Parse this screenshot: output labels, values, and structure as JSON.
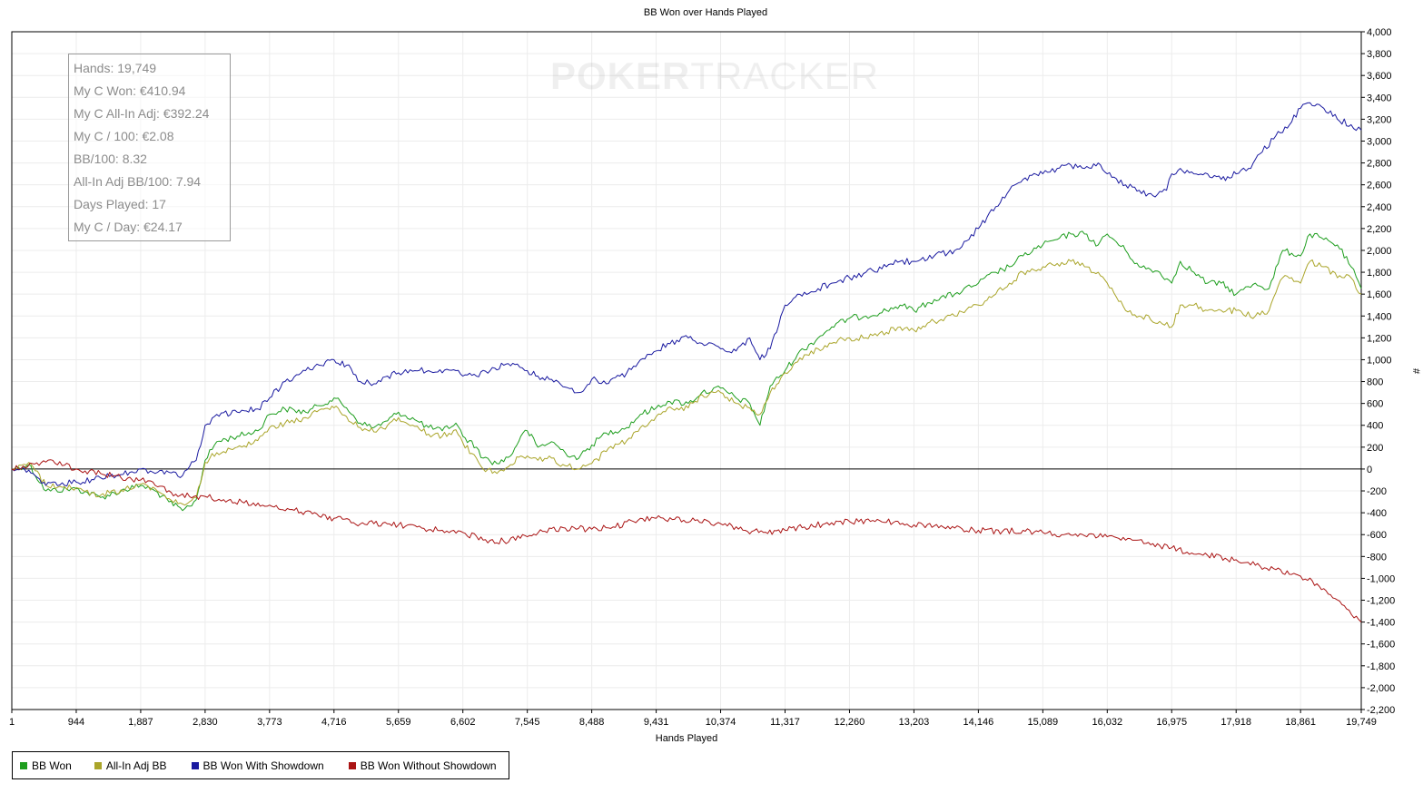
{
  "chart_data": {
    "type": "line",
    "title": "BB Won over Hands Played",
    "xlabel": "Hands Played",
    "ylabel": "#",
    "xlim": [
      1,
      19749
    ],
    "ylim": [
      -2200,
      4000
    ],
    "x_ticks": [
      1,
      944,
      1887,
      2830,
      3773,
      4716,
      5659,
      6602,
      7545,
      8488,
      9431,
      10374,
      11317,
      12260,
      13203,
      14146,
      15089,
      16032,
      16975,
      17918,
      18861,
      19749
    ],
    "x_tick_labels": [
      "1",
      "944",
      "1,887",
      "2,830",
      "3,773",
      "4,716",
      "5,659",
      "6,602",
      "7,545",
      "8,488",
      "9,431",
      "10,374",
      "11,317",
      "12,260",
      "13,203",
      "14,146",
      "15,089",
      "16,032",
      "16,975",
      "17,918",
      "18,861",
      "19,749"
    ],
    "y_ticks": [
      4000,
      3800,
      3600,
      3400,
      3200,
      3000,
      2800,
      2600,
      2400,
      2200,
      2000,
      1800,
      1600,
      1400,
      1200,
      1000,
      800,
      600,
      400,
      200,
      0,
      -200,
      -400,
      -600,
      -800,
      -1000,
      -1200,
      -1400,
      -1600,
      -1800,
      -2000,
      -2200
    ],
    "y_tick_labels": [
      "4,000",
      "3,800",
      "3,600",
      "3,400",
      "3,200",
      "3,000",
      "2,800",
      "2,600",
      "2,400",
      "2,200",
      "2,000",
      "1,800",
      "1,600",
      "1,400",
      "1,200",
      "1,000",
      "800",
      "600",
      "400",
      "200",
      "0",
      "-200",
      "-400",
      "-600",
      "-800",
      "-1,000",
      "-1,200",
      "-1,400",
      "-1,600",
      "-1,800",
      "-2,000",
      "-2,200"
    ],
    "grid": true,
    "legend_position": "bottom-left",
    "series": [
      {
        "name": "BB Won",
        "color": "#1e9e1e",
        "x": [
          1,
          250,
          500,
          944,
          1300,
          1600,
          1887,
          2100,
          2300,
          2500,
          2600,
          2700,
          2830,
          3000,
          3300,
          3600,
          3773,
          4000,
          4300,
          4500,
          4716,
          4900,
          5100,
          5300,
          5500,
          5659,
          5900,
          6100,
          6300,
          6500,
          6602,
          6800,
          6900,
          7100,
          7300,
          7450,
          7545,
          7700,
          7900,
          8100,
          8300,
          8488,
          8700,
          9000,
          9200,
          9431,
          9600,
          9900,
          10100,
          10374,
          10600,
          10800,
          10950,
          11100,
          11317,
          11500,
          11800,
          12000,
          12260,
          12500,
          12800,
          13000,
          13203,
          13500,
          13800,
          14146,
          14400,
          14600,
          14800,
          15089,
          15300,
          15500,
          15700,
          15900,
          16032,
          16300,
          16500,
          16800,
          16975,
          17100,
          17300,
          17500,
          17700,
          17918,
          18200,
          18400,
          18600,
          18861,
          19000,
          19200,
          19400,
          19600,
          19749
        ],
        "y": [
          0,
          40,
          -200,
          -180,
          -260,
          -200,
          -150,
          -200,
          -300,
          -380,
          -340,
          -280,
          80,
          250,
          300,
          350,
          500,
          550,
          520,
          580,
          650,
          560,
          420,
          380,
          440,
          520,
          450,
          380,
          350,
          420,
          300,
          200,
          100,
          50,
          120,
          300,
          350,
          200,
          250,
          150,
          100,
          220,
          330,
          380,
          500,
          560,
          620,
          600,
          700,
          740,
          650,
          600,
          400,
          760,
          900,
          1050,
          1200,
          1300,
          1380,
          1400,
          1450,
          1500,
          1450,
          1550,
          1600,
          1700,
          1800,
          1850,
          1950,
          2050,
          2100,
          2150,
          2150,
          2050,
          2150,
          2000,
          1850,
          1800,
          1700,
          1900,
          1800,
          1700,
          1700,
          1600,
          1700,
          1650,
          2000,
          1950,
          2150,
          2100,
          2050,
          1850,
          1650
        ]
      },
      {
        "name": "All-In Adj BB",
        "color": "#aaa52a",
        "x": [
          1,
          250,
          500,
          944,
          1300,
          1600,
          1887,
          2100,
          2300,
          2500,
          2600,
          2700,
          2830,
          3000,
          3300,
          3600,
          3773,
          4000,
          4300,
          4500,
          4716,
          4900,
          5100,
          5300,
          5500,
          5659,
          5900,
          6100,
          6300,
          6500,
          6602,
          6800,
          6900,
          7100,
          7300,
          7450,
          7545,
          7700,
          7900,
          8100,
          8300,
          8488,
          8700,
          9000,
          9200,
          9431,
          9600,
          9900,
          10100,
          10374,
          10600,
          10800,
          10950,
          11100,
          11317,
          11500,
          11800,
          12000,
          12260,
          12500,
          12800,
          13000,
          13203,
          13500,
          13800,
          14146,
          14400,
          14600,
          14800,
          15089,
          15300,
          15500,
          15700,
          15900,
          16032,
          16300,
          16500,
          16800,
          16975,
          17100,
          17300,
          17500,
          17700,
          17918,
          18200,
          18400,
          18600,
          18861,
          19000,
          19200,
          19400,
          19600,
          19749
        ],
        "y": [
          0,
          60,
          -150,
          -170,
          -240,
          -190,
          -140,
          -180,
          -270,
          -320,
          -300,
          -260,
          60,
          150,
          200,
          260,
          380,
          420,
          470,
          540,
          560,
          480,
          380,
          340,
          400,
          470,
          390,
          320,
          300,
          360,
          240,
          100,
          0,
          -40,
          40,
          120,
          120,
          80,
          100,
          30,
          0,
          50,
          160,
          260,
          380,
          480,
          560,
          560,
          680,
          700,
          600,
          560,
          500,
          700,
          880,
          980,
          1100,
          1150,
          1200,
          1200,
          1250,
          1300,
          1270,
          1350,
          1400,
          1500,
          1600,
          1700,
          1800,
          1850,
          1880,
          1900,
          1850,
          1800,
          1700,
          1450,
          1400,
          1350,
          1300,
          1500,
          1500,
          1450,
          1450,
          1450,
          1400,
          1450,
          1750,
          1700,
          1900,
          1850,
          1750,
          1750,
          1600
        ]
      },
      {
        "name": "BB Won With Showdown",
        "color": "#1a1aa0",
        "x": [
          1,
          250,
          500,
          944,
          1300,
          1600,
          1887,
          2100,
          2300,
          2500,
          2600,
          2700,
          2830,
          3000,
          3300,
          3600,
          3773,
          4000,
          4300,
          4500,
          4716,
          4900,
          5100,
          5300,
          5500,
          5659,
          5900,
          6100,
          6300,
          6500,
          6602,
          6800,
          7000,
          7200,
          7400,
          7545,
          7700,
          7900,
          8100,
          8300,
          8488,
          8700,
          9000,
          9200,
          9431,
          9600,
          9900,
          10100,
          10374,
          10600,
          10800,
          10950,
          11100,
          11317,
          11500,
          11800,
          12000,
          12260,
          12500,
          12800,
          13000,
          13203,
          13500,
          13800,
          14146,
          14400,
          14600,
          14800,
          15089,
          15300,
          15500,
          15700,
          15900,
          16032,
          16300,
          16500,
          16700,
          16900,
          16975,
          17100,
          17300,
          17500,
          17700,
          17918,
          18100,
          18300,
          18500,
          18700,
          18861,
          19000,
          19200,
          19400,
          19600,
          19749
        ],
        "y": [
          0,
          -10,
          -150,
          -120,
          -80,
          -50,
          0,
          -40,
          -30,
          -60,
          20,
          80,
          400,
          500,
          520,
          550,
          650,
          800,
          900,
          950,
          1000,
          950,
          800,
          780,
          850,
          880,
          900,
          900,
          880,
          900,
          850,
          850,
          900,
          950,
          960,
          900,
          850,
          820,
          750,
          700,
          820,
          780,
          880,
          1000,
          1080,
          1150,
          1200,
          1150,
          1100,
          1080,
          1200,
          1000,
          1100,
          1500,
          1600,
          1650,
          1700,
          1750,
          1800,
          1850,
          1900,
          1900,
          1950,
          2000,
          2200,
          2400,
          2550,
          2650,
          2700,
          2750,
          2780,
          2750,
          2800,
          2700,
          2600,
          2550,
          2500,
          2550,
          2700,
          2750,
          2700,
          2700,
          2650,
          2700,
          2750,
          2900,
          3050,
          3150,
          3300,
          3350,
          3300,
          3200,
          3150,
          3100
        ]
      },
      {
        "name": "BB Won Without Showdown",
        "color": "#aa1414",
        "x": [
          1,
          300,
          600,
          944,
          1300,
          1600,
          1887,
          2100,
          2400,
          2600,
          2830,
          3100,
          3400,
          3773,
          4100,
          4400,
          4716,
          5000,
          5300,
          5659,
          6000,
          6300,
          6602,
          6900,
          7200,
          7545,
          7800,
          8100,
          8488,
          8800,
          9100,
          9431,
          9700,
          10000,
          10374,
          10700,
          11000,
          11317,
          11600,
          11900,
          12260,
          12600,
          12900,
          13203,
          13500,
          13800,
          14146,
          14500,
          14800,
          15089,
          15400,
          15700,
          16032,
          16300,
          16600,
          16800,
          16975,
          17200,
          17500,
          17918,
          18200,
          18500,
          18861,
          19100,
          19300,
          19500,
          19749
        ],
        "y": [
          0,
          50,
          80,
          0,
          -40,
          -80,
          -100,
          -150,
          -230,
          -250,
          -250,
          -280,
          -310,
          -330,
          -370,
          -410,
          -450,
          -490,
          -500,
          -510,
          -540,
          -560,
          -580,
          -650,
          -660,
          -620,
          -570,
          -540,
          -550,
          -530,
          -480,
          -450,
          -460,
          -470,
          -500,
          -560,
          -580,
          -560,
          -530,
          -500,
          -480,
          -470,
          -490,
          -510,
          -520,
          -540,
          -560,
          -570,
          -560,
          -580,
          -600,
          -610,
          -620,
          -650,
          -680,
          -700,
          -720,
          -760,
          -790,
          -830,
          -880,
          -920,
          -980,
          -1050,
          -1150,
          -1250,
          -1400
        ]
      }
    ]
  },
  "stats": [
    "Hands: 19,749",
    "My C Won: €410.94",
    "My C All-In Adj: €392.24",
    "My C / 100: €2.08",
    "BB/100: 8.32",
    "All-In Adj BB/100: 7.94",
    "Days Played: 17",
    "My C / Day: €24.17"
  ],
  "watermark": {
    "part1": "POKER",
    "part2": "TRACKER"
  }
}
